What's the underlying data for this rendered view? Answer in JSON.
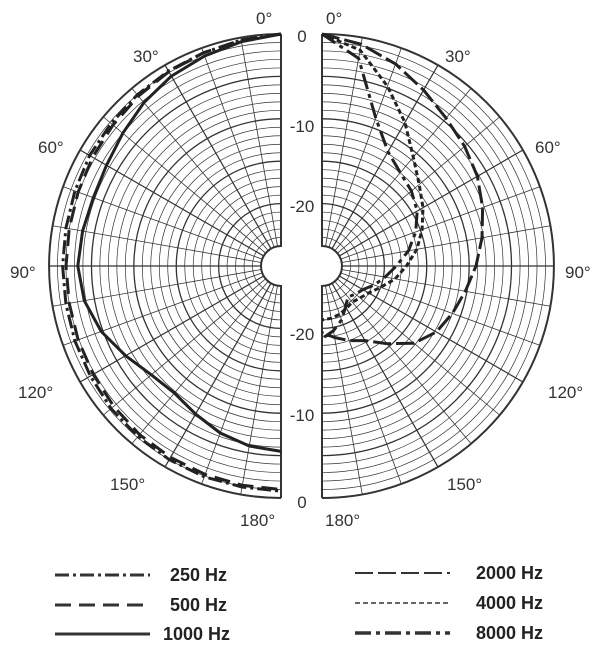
{
  "chart_data": {
    "type": "polar",
    "title": "",
    "angle_labels": [
      "0°",
      "30°",
      "60°",
      "90°",
      "120°",
      "150°",
      "180°"
    ],
    "right_angle_labels": [
      "0°",
      "30°",
      "60°",
      "90°",
      "120°",
      "150°",
      "180°"
    ],
    "radius_labels": [
      "0",
      "-10",
      "-20",
      "-20",
      "-10",
      "0"
    ],
    "rlim": [
      -25,
      0
    ],
    "grid": true,
    "legend_position": "bottom",
    "angles_deg": [
      0,
      10,
      20,
      30,
      40,
      50,
      60,
      70,
      80,
      90,
      100,
      110,
      120,
      130,
      140,
      150,
      160,
      170,
      180
    ],
    "series": [
      {
        "name": "250 Hz",
        "side": "left",
        "dash": "14 4 3 4",
        "values": [
          0,
          -0.3,
          -0.6,
          -0.8,
          -1.0,
          -1.2,
          -1.3,
          -1.5,
          -1.6,
          -1.6,
          -1.6,
          -1.5,
          -1.4,
          -1.2,
          -1.1,
          -1.0,
          -0.9,
          -0.9,
          -0.8
        ]
      },
      {
        "name": "500 Hz",
        "side": "left",
        "dash": "16 8",
        "values": [
          0,
          -0.3,
          -0.6,
          -0.9,
          -1.2,
          -1.5,
          -1.7,
          -1.9,
          -2.0,
          -2.0,
          -2.0,
          -1.9,
          -1.8,
          -1.6,
          -1.4,
          -1.3,
          -1.2,
          -1.1,
          -1.0
        ]
      },
      {
        "name": "1000 Hz",
        "side": "left",
        "dash": "",
        "values": [
          0,
          -0.5,
          -1.0,
          -1.5,
          -2.2,
          -3.0,
          -3.6,
          -3.8,
          -3.6,
          -3.4,
          -3.8,
          -4.8,
          -6.2,
          -7.4,
          -7.8,
          -7.2,
          -6.4,
          -5.8,
          -5.5
        ]
      },
      {
        "name": "2000 Hz",
        "side": "right",
        "dash": "18 5",
        "values": [
          0,
          -0.8,
          -2.0,
          -3.4,
          -4.6,
          -5.4,
          -6.2,
          -7.2,
          -8.2,
          -9.2,
          -10.2,
          -11.0,
          -11.8,
          -13.2,
          -15.4,
          -17.2,
          -18.0,
          -18.8,
          -19.5
        ]
      },
      {
        "name": "4000 Hz",
        "side": "right",
        "dash": "5 3",
        "values": [
          0,
          -1.5,
          -4.8,
          -7.8,
          -10.6,
          -12.4,
          -13.6,
          -14.8,
          -16.0,
          -17.4,
          -18.6,
          -20.0,
          -21.0,
          -21.5,
          -21.8,
          -21.6,
          -21.3,
          -21.1,
          -21.0
        ]
      },
      {
        "name": "8000 Hz",
        "side": "right",
        "dash": "16 5 4 5",
        "values": [
          0,
          -2.5,
          -8.8,
          -11.8,
          -13.0,
          -13.6,
          -14.4,
          -15.6,
          -17.0,
          -18.6,
          -19.8,
          -20.8,
          -21.8,
          -22.2,
          -22.6,
          -21.8,
          -20.6,
          -19.6,
          -18.8
        ]
      }
    ]
  }
}
